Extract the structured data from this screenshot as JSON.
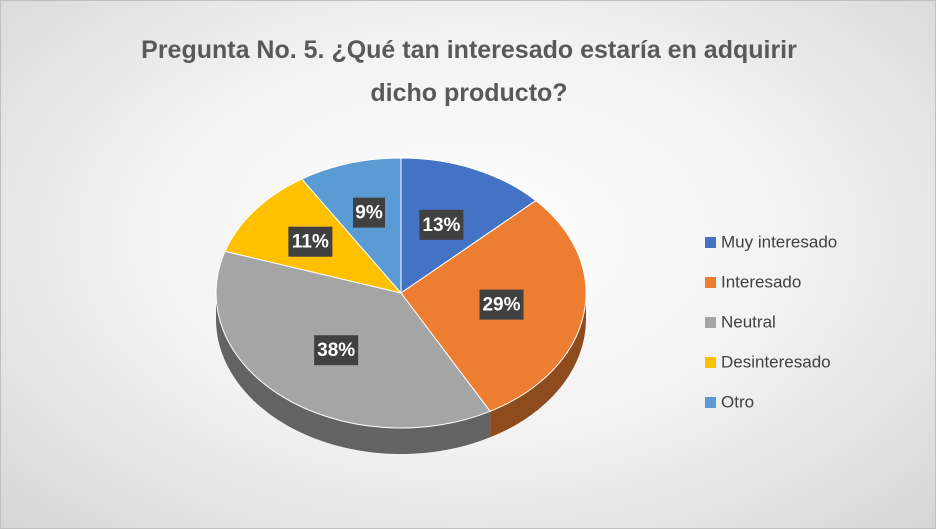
{
  "chart_data": {
    "type": "pie",
    "title": "Pregunta No. 5. ¿Qué tan interesado estaría en adquirir dicho producto?",
    "categories": [
      "Muy interesado",
      "Interesado",
      "Neutral",
      "Desinteresado",
      "Otro"
    ],
    "values": [
      13,
      29,
      38,
      11,
      9
    ],
    "value_labels": [
      "13%",
      "29%",
      "38%",
      "11%",
      "9%"
    ],
    "colors": [
      "#4472c4",
      "#ed7d31",
      "#a5a5a5",
      "#ffc000",
      "#5b9bd5"
    ],
    "legend": "right"
  }
}
